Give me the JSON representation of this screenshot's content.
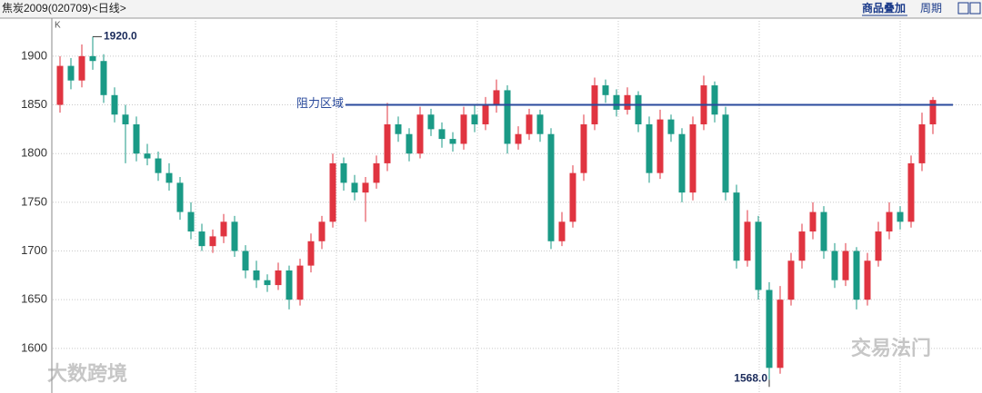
{
  "header": {
    "title": "焦炭2009(020709)<日线>",
    "buttons": [
      "商品叠加",
      "周期"
    ]
  },
  "chart_data": {
    "type": "candlestick",
    "panel_label": "K",
    "up_color": "#e03440",
    "down_color": "#1a9a86",
    "ylim": [
      1557,
      1939
    ],
    "yticks": [
      1600,
      1650,
      1700,
      1750,
      1800,
      1850,
      1900
    ],
    "grid": true,
    "open": [
      1850,
      1890,
      1875,
      1900,
      1895,
      1860,
      1840,
      1830,
      1800,
      1795,
      1780,
      1770,
      1740,
      1720,
      1705,
      1715,
      1730,
      1700,
      1680,
      1670,
      1665,
      1680,
      1650,
      1685,
      1710,
      1730,
      1790,
      1770,
      1760,
      1770,
      1790,
      1830,
      1820,
      1800,
      1840,
      1825,
      1815,
      1810,
      1840,
      1830,
      1850,
      1865,
      1810,
      1820,
      1840,
      1820,
      1710,
      1730,
      1780,
      1830,
      1870,
      1860,
      1845,
      1860,
      1830,
      1780,
      1835,
      1820,
      1760,
      1830,
      1870,
      1840,
      1760,
      1690,
      1730,
      1660,
      1580,
      1650,
      1690,
      1720,
      1740,
      1700,
      1670,
      1700,
      1650,
      1690,
      1720,
      1740,
      1730,
      1790,
      1830
    ],
    "high": [
      1900,
      1898,
      1912,
      1920,
      1902,
      1868,
      1850,
      1838,
      1810,
      1802,
      1790,
      1776,
      1750,
      1728,
      1722,
      1738,
      1736,
      1706,
      1690,
      1676,
      1688,
      1685,
      1692,
      1718,
      1736,
      1800,
      1796,
      1778,
      1776,
      1798,
      1852,
      1838,
      1826,
      1848,
      1846,
      1832,
      1822,
      1848,
      1850,
      1858,
      1876,
      1870,
      1828,
      1846,
      1845,
      1826,
      1740,
      1788,
      1840,
      1878,
      1876,
      1866,
      1868,
      1864,
      1838,
      1845,
      1840,
      1826,
      1838,
      1880,
      1874,
      1848,
      1768,
      1742,
      1736,
      1668,
      1664,
      1698,
      1728,
      1750,
      1746,
      1708,
      1708,
      1704,
      1698,
      1730,
      1750,
      1746,
      1798,
      1842,
      1858
    ],
    "low": [
      1842,
      1866,
      1868,
      1886,
      1852,
      1832,
      1790,
      1792,
      1788,
      1772,
      1762,
      1732,
      1712,
      1700,
      1698,
      1708,
      1694,
      1672,
      1662,
      1658,
      1660,
      1640,
      1644,
      1678,
      1702,
      1724,
      1762,
      1752,
      1730,
      1764,
      1782,
      1812,
      1792,
      1795,
      1818,
      1806,
      1802,
      1804,
      1822,
      1824,
      1842,
      1800,
      1804,
      1814,
      1812,
      1702,
      1705,
      1724,
      1772,
      1824,
      1852,
      1838,
      1840,
      1822,
      1770,
      1774,
      1812,
      1750,
      1752,
      1824,
      1832,
      1752,
      1682,
      1684,
      1650,
      1568,
      1574,
      1644,
      1682,
      1712,
      1692,
      1662,
      1664,
      1640,
      1644,
      1684,
      1712,
      1722,
      1724,
      1782,
      1820
    ],
    "close": [
      1890,
      1875,
      1900,
      1895,
      1860,
      1840,
      1830,
      1800,
      1795,
      1780,
      1770,
      1740,
      1720,
      1705,
      1715,
      1730,
      1700,
      1680,
      1670,
      1665,
      1680,
      1650,
      1685,
      1710,
      1730,
      1790,
      1770,
      1760,
      1770,
      1790,
      1830,
      1820,
      1800,
      1840,
      1825,
      1815,
      1810,
      1840,
      1830,
      1850,
      1865,
      1810,
      1820,
      1840,
      1820,
      1710,
      1730,
      1780,
      1830,
      1870,
      1860,
      1845,
      1860,
      1830,
      1780,
      1835,
      1820,
      1760,
      1830,
      1870,
      1840,
      1760,
      1690,
      1730,
      1660,
      1580,
      1650,
      1690,
      1720,
      1740,
      1700,
      1670,
      1700,
      1650,
      1690,
      1720,
      1740,
      1730,
      1790,
      1830,
      1855
    ],
    "annotations": [
      {
        "value": 1920,
        "label": "1920.0",
        "of": "high"
      },
      {
        "value": 1568,
        "label": "1568.0",
        "of": "low"
      }
    ],
    "resistance": {
      "value": 1850,
      "label": "阻力区域",
      "color": "#2a4a9c"
    }
  },
  "watermarks": [
    "大数跨境",
    "交易法门"
  ]
}
